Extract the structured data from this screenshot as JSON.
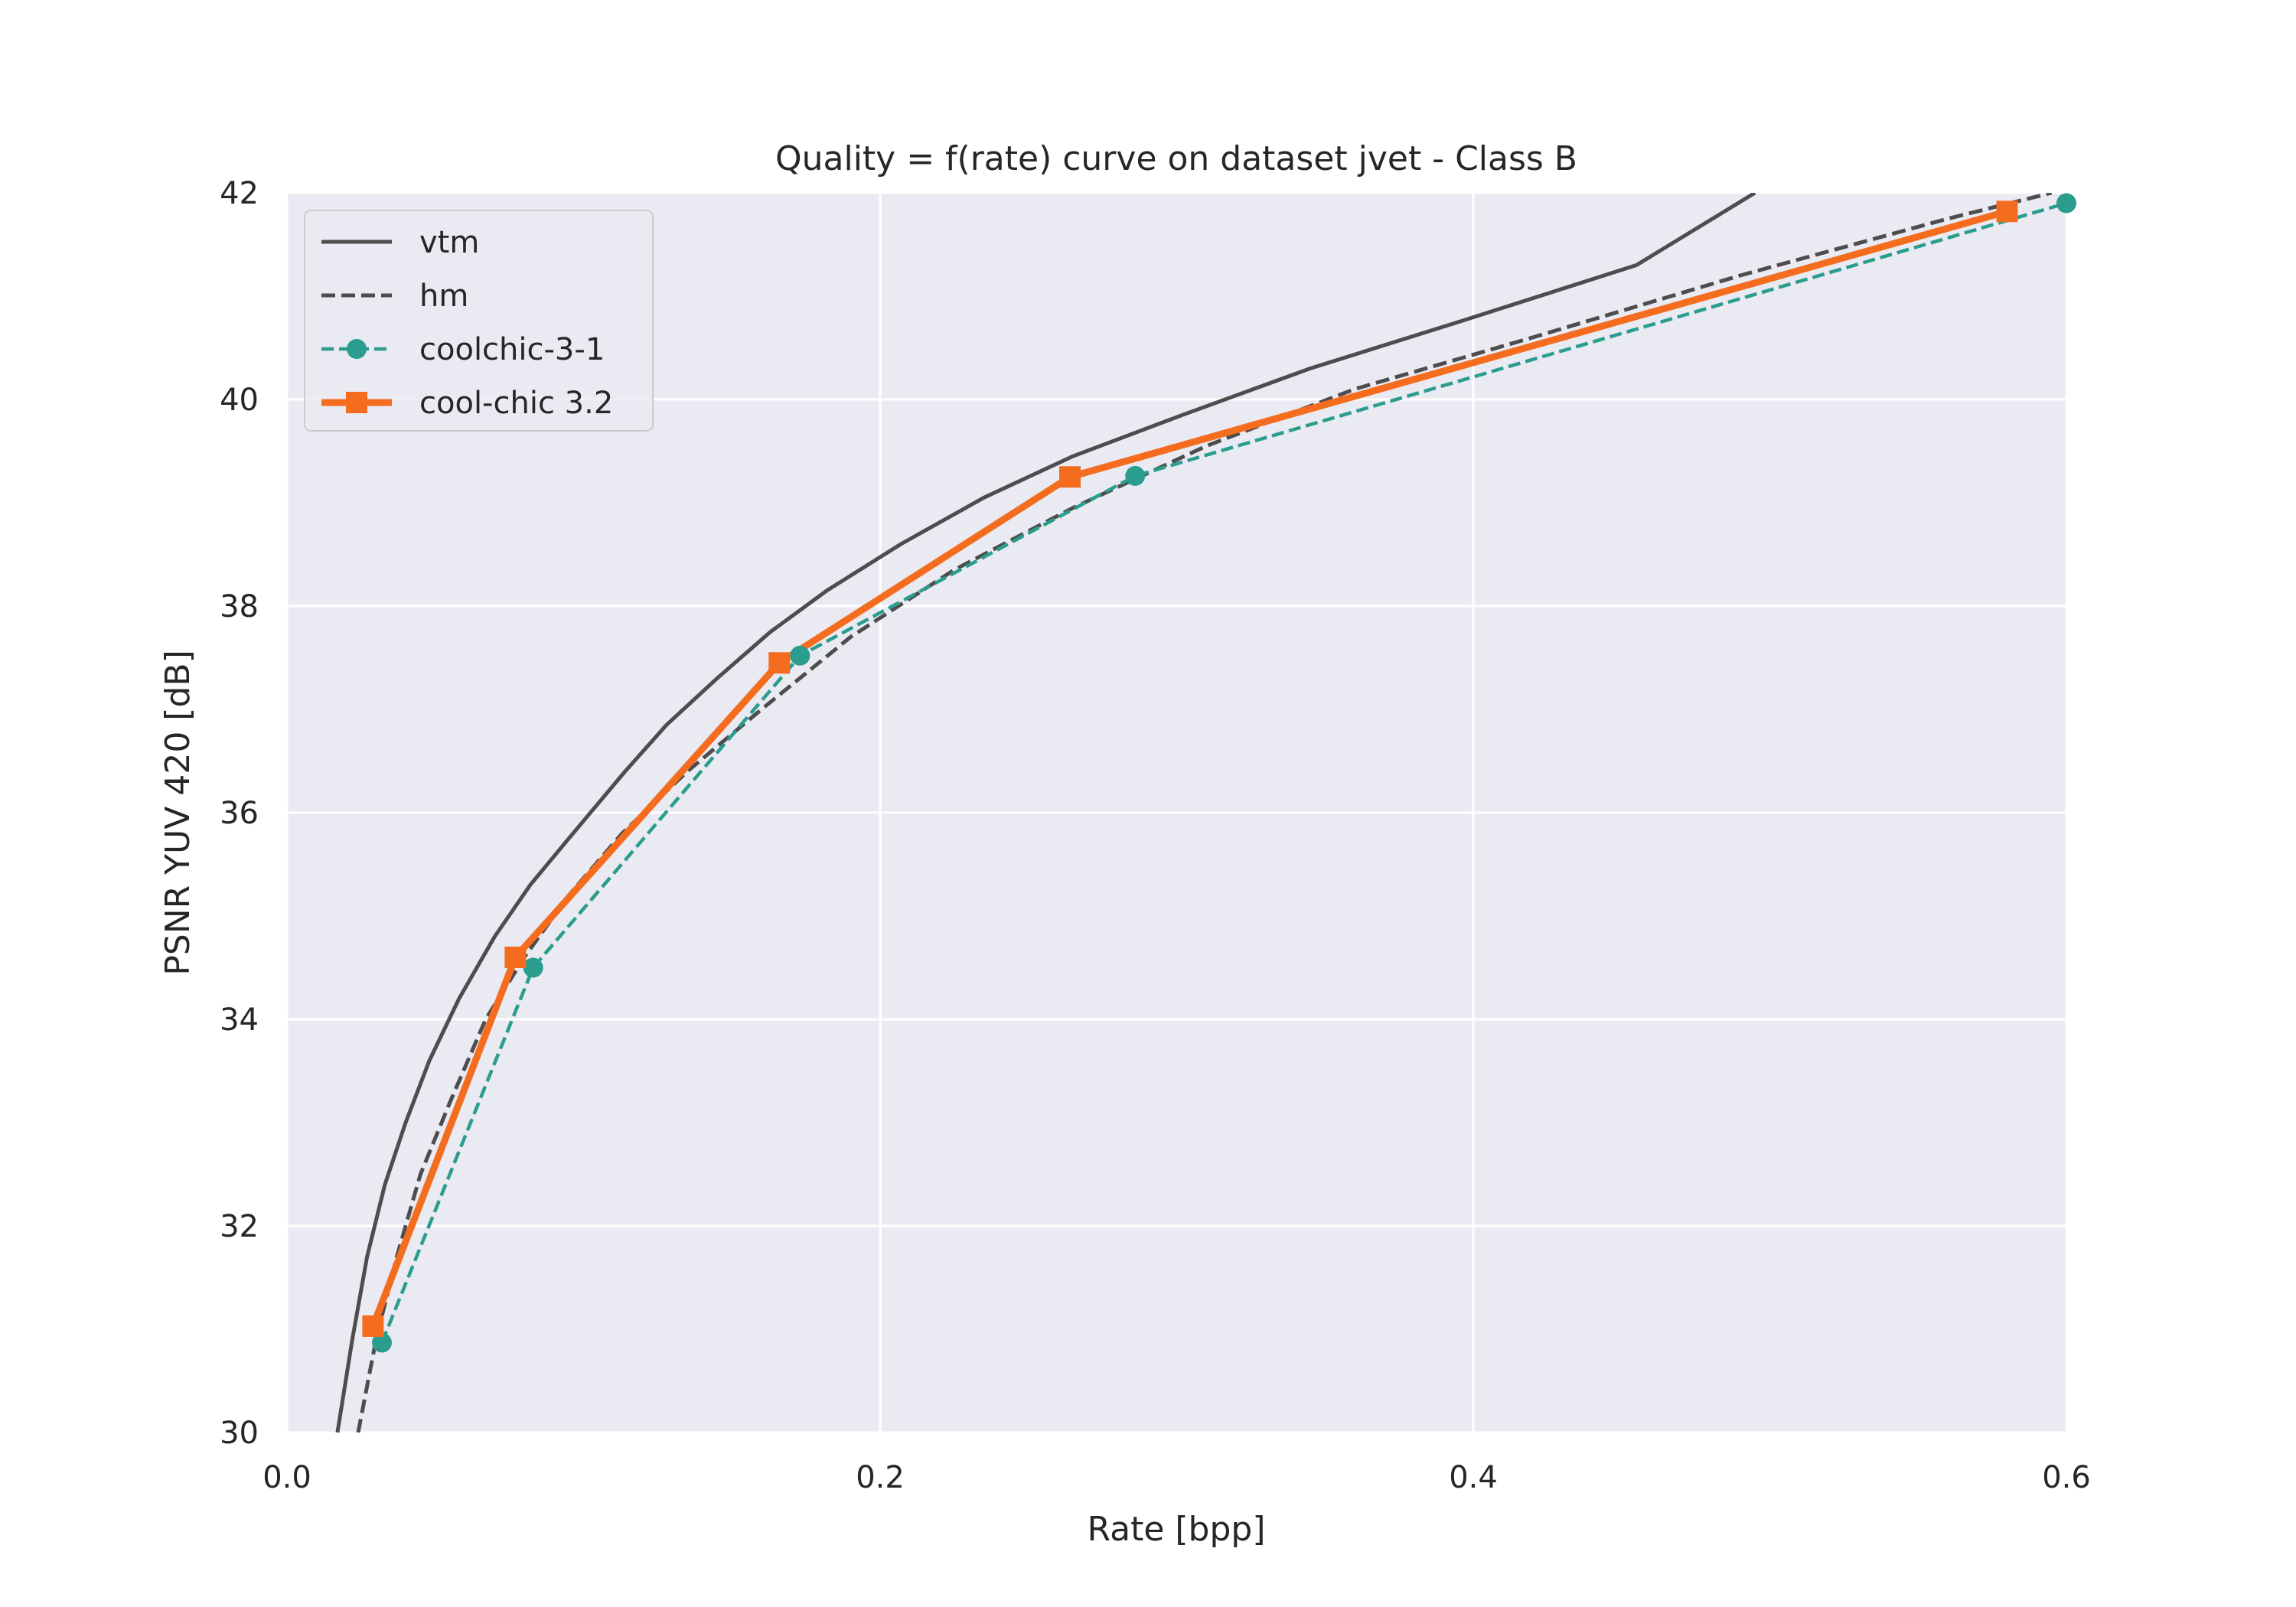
{
  "chart_data": {
    "type": "line",
    "title": "Quality = f(rate) curve on dataset jvet - Class B",
    "xlabel": "Rate [bpp]",
    "ylabel": "PSNR YUV 420 [dB]",
    "xlim": [
      0.0,
      0.6
    ],
    "ylim": [
      30,
      42
    ],
    "xticks": [
      0.0,
      0.2,
      0.4,
      0.6
    ],
    "xtick_labels": [
      "0.0",
      "0.2",
      "0.4",
      "0.6"
    ],
    "yticks": [
      30,
      32,
      34,
      36,
      38,
      40,
      42
    ],
    "ytick_labels": [
      "30",
      "32",
      "34",
      "36",
      "38",
      "40",
      "42"
    ],
    "grid": true,
    "legend_position": "top-left",
    "series": [
      {
        "name": "vtm",
        "color": "#4d4d4d",
        "style": "solid",
        "marker": "none",
        "x": [
          0.017,
          0.022,
          0.027,
          0.033,
          0.04,
          0.048,
          0.058,
          0.07,
          0.082,
          0.095,
          0.114,
          0.128,
          0.145,
          0.163,
          0.182,
          0.207,
          0.235,
          0.265,
          0.302,
          0.345,
          0.395,
          0.455,
          0.495
        ],
        "values": [
          30.0,
          30.9,
          31.7,
          32.4,
          33.0,
          33.6,
          34.2,
          34.8,
          35.3,
          35.75,
          36.4,
          36.85,
          37.3,
          37.75,
          38.15,
          38.6,
          39.05,
          39.45,
          39.85,
          40.3,
          40.75,
          41.3,
          42.0
        ]
      },
      {
        "name": "hm",
        "color": "#4d4d4d",
        "style": "dashed",
        "marker": "none",
        "x": [
          0.024,
          0.03,
          0.037,
          0.045,
          0.055,
          0.067,
          0.08,
          0.095,
          0.113,
          0.135,
          0.16,
          0.19,
          0.225,
          0.265,
          0.31,
          0.36,
          0.42,
          0.49,
          0.56,
          0.595
        ],
        "values": [
          30.0,
          30.9,
          31.7,
          32.5,
          33.2,
          34.0,
          34.6,
          35.2,
          35.8,
          36.4,
          37.0,
          37.7,
          38.35,
          38.95,
          39.55,
          40.1,
          40.6,
          41.2,
          41.75,
          42.0
        ]
      },
      {
        "name": "coolchic-3-1",
        "color": "#2a9d8f",
        "style": "dashed",
        "marker": "circle",
        "x": [
          0.032,
          0.083,
          0.173,
          0.286,
          0.6
        ],
        "values": [
          30.87,
          34.5,
          37.52,
          39.26,
          41.9
        ]
      },
      {
        "name": "cool-chic 3.2",
        "color": "#f46d1f",
        "style": "solid",
        "marker": "square",
        "x": [
          0.029,
          0.077,
          0.166,
          0.264,
          0.58
        ],
        "values": [
          31.03,
          34.6,
          37.45,
          39.25,
          41.82
        ]
      }
    ]
  }
}
